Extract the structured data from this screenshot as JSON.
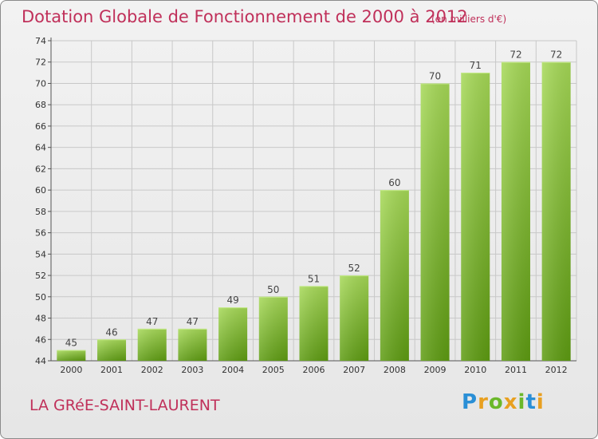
{
  "title": "Dotation Globale de Fonctionnement de 2000 à 2012",
  "unit_note": "(en milliers d'€)",
  "commune": "LA GRéE-SAINT-LAURENT",
  "logo": {
    "text": "Proxiti",
    "letters": [
      {
        "ch": "P",
        "color": "#2a8fd6"
      },
      {
        "ch": "r",
        "color": "#e8a020"
      },
      {
        "ch": "o",
        "color": "#6bb82a"
      },
      {
        "ch": "x",
        "color": "#e8a020"
      },
      {
        "ch": "i",
        "color": "#6bb82a"
      },
      {
        "ch": "t",
        "color": "#2a8fd6"
      },
      {
        "ch": "i",
        "color": "#e8a020"
      }
    ]
  },
  "colors": {
    "accent": "#c0305a",
    "bar_light": "#9fd44e",
    "bar_dark": "#5e9c12",
    "grid": "#c8c8c8"
  },
  "chart_data": {
    "type": "bar",
    "categories": [
      "2000",
      "2001",
      "2002",
      "2003",
      "2004",
      "2005",
      "2006",
      "2007",
      "2008",
      "2009",
      "2010",
      "2011",
      "2012"
    ],
    "values": [
      45,
      46,
      47,
      47,
      49,
      50,
      51,
      52,
      60,
      70,
      71,
      72,
      72
    ],
    "title": "Dotation Globale de Fonctionnement de 2000 à 2012",
    "ylabel": "",
    "xlabel": "",
    "ylim": [
      44,
      74
    ],
    "yticks": [
      44,
      46,
      48,
      50,
      52,
      54,
      56,
      58,
      60,
      62,
      64,
      66,
      68,
      70,
      72,
      74
    ],
    "grid": true,
    "data_labels": true
  }
}
